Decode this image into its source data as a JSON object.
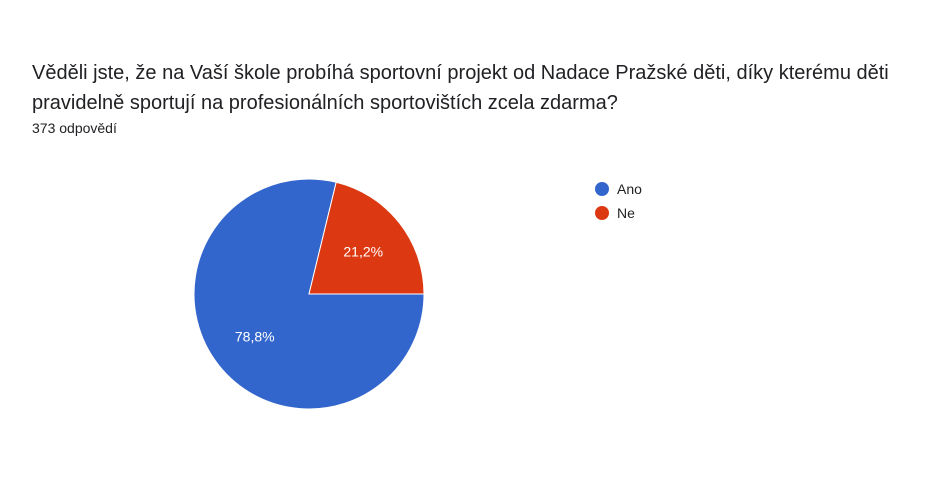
{
  "question": "Věděli jste, že na Vaší škole probíhá sportovní projekt od Nadace Pražské děti, díky kterému děti pravidelně sportují na profesionálních sportovištích zcela zdarma?",
  "response_count": "373 odpovědí",
  "chart_data": {
    "type": "pie",
    "categories": [
      "Ano",
      "Ne"
    ],
    "values": [
      78.8,
      21.2
    ],
    "labels": [
      "78,8%",
      "21,2%"
    ],
    "colors": [
      "#3366cc",
      "#dc3912"
    ],
    "legend": "right",
    "start_angle_deg": 90
  }
}
